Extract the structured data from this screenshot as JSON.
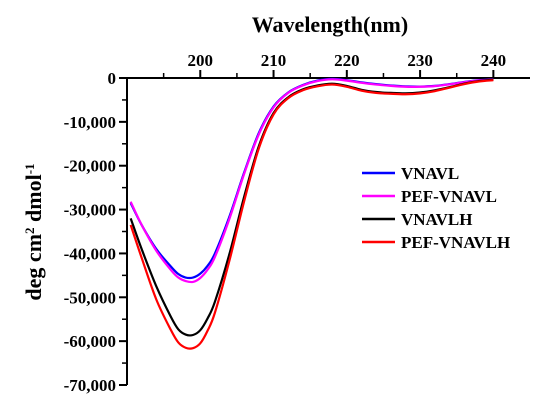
{
  "chart_data": {
    "type": "line",
    "xlabel": "Wavelength(nm)",
    "ylabel": "deg cm",
    "ylabel_sup1": "2",
    "ylabel_mid": " dmol",
    "ylabel_sup2": "-1",
    "x_axis_position": "top",
    "xlim": [
      190,
      245
    ],
    "ylim": [
      -70000,
      0
    ],
    "x_ticks": [
      200,
      210,
      220,
      230,
      240
    ],
    "x_tick_labels": [
      "200",
      "210",
      "220",
      "230",
      "240"
    ],
    "y_ticks": [
      0,
      -10000,
      -20000,
      -30000,
      -40000,
      -50000,
      -60000,
      -70000
    ],
    "y_tick_labels": [
      "0",
      "-10,000",
      "-20,000",
      "-30,000",
      "-40,000",
      "-50,000",
      "-60,000",
      "-70,000"
    ],
    "grid": false,
    "legend_position": "right",
    "series": [
      {
        "name": "VNAVL",
        "color": "#0000ff",
        "x": [
          190.5,
          192,
          194,
          196,
          197,
          198,
          199,
          200,
          201,
          202,
          204,
          206,
          208,
          210,
          212,
          214,
          216,
          218,
          220,
          222,
          224,
          226,
          228,
          230,
          232,
          234,
          236,
          238,
          240
        ],
        "y": [
          -28500,
          -33500,
          -39000,
          -43000,
          -44700,
          -45500,
          -45500,
          -44600,
          -42800,
          -40000,
          -31500,
          -21500,
          -12500,
          -6500,
          -3300,
          -1600,
          -600,
          -200,
          -500,
          -1000,
          -1400,
          -1700,
          -1900,
          -1950,
          -1800,
          -1400,
          -900,
          -500,
          -300
        ]
      },
      {
        "name": "PEF-VNAVL",
        "color": "#ff00ff",
        "x": [
          190.5,
          192,
          194,
          196,
          197,
          198,
          199,
          200,
          201,
          202,
          204,
          206,
          208,
          210,
          212,
          214,
          216,
          218,
          220,
          222,
          224,
          226,
          228,
          230,
          232,
          234,
          236,
          238,
          240
        ],
        "y": [
          -28200,
          -33500,
          -39400,
          -43800,
          -45500,
          -46300,
          -46500,
          -45600,
          -43700,
          -40800,
          -32000,
          -21800,
          -12800,
          -6700,
          -3400,
          -1700,
          -700,
          -300,
          -600,
          -1100,
          -1500,
          -1800,
          -2000,
          -2000,
          -1850,
          -1450,
          -950,
          -550,
          -350
        ]
      },
      {
        "name": "VNAVLH",
        "color": "#000000",
        "x": [
          190.5,
          192,
          194,
          196,
          197,
          198,
          199,
          200,
          201,
          202,
          204,
          206,
          208,
          210,
          212,
          214,
          216,
          218,
          220,
          222,
          224,
          226,
          228,
          230,
          232,
          234,
          236,
          238,
          240
        ],
        "y": [
          -32000,
          -39000,
          -47500,
          -54500,
          -57300,
          -58500,
          -58600,
          -57500,
          -54800,
          -51000,
          -40000,
          -27000,
          -15500,
          -8000,
          -4400,
          -2600,
          -1700,
          -1300,
          -1800,
          -2700,
          -3200,
          -3400,
          -3500,
          -3300,
          -2800,
          -2100,
          -1300,
          -700,
          -400
        ]
      },
      {
        "name": "PEF-VNAVLH",
        "color": "#ff0000",
        "x": [
          190.5,
          192,
          194,
          196,
          197,
          198,
          199,
          200,
          201,
          202,
          204,
          206,
          208,
          210,
          212,
          214,
          216,
          218,
          220,
          222,
          224,
          226,
          228,
          230,
          232,
          234,
          236,
          238,
          240
        ],
        "y": [
          -33500,
          -41000,
          -50500,
          -57500,
          -60300,
          -61500,
          -61600,
          -60500,
          -57600,
          -53500,
          -41500,
          -28000,
          -16000,
          -8300,
          -4600,
          -2800,
          -1900,
          -1500,
          -2000,
          -2900,
          -3400,
          -3600,
          -3700,
          -3500,
          -3000,
          -2200,
          -1400,
          -800,
          -500
        ]
      }
    ]
  }
}
